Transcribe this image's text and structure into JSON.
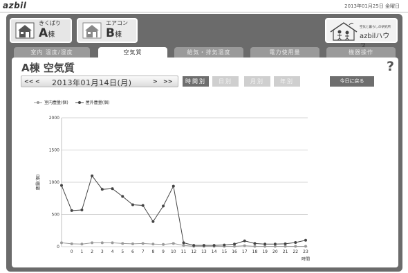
{
  "header": {
    "logo": "azbil",
    "datetime": "2013年01月25日 金曜日"
  },
  "buildings": [
    {
      "small": "きくばり",
      "big": "A",
      "suffix": "棟",
      "active": true
    },
    {
      "small": "エアコン",
      "big": "B",
      "suffix": "棟",
      "active": false
    }
  ],
  "brand": {
    "small": "空気と暮らしの研究所",
    "big": "azbilハウス"
  },
  "tabs": [
    "室内 温度/湿度",
    "空気質",
    "給気・排気温度",
    "電力使用量",
    "機器操作"
  ],
  "active_tab": 1,
  "panel": {
    "title": "A棟 空気質",
    "help": "?",
    "date": "2013年01月14日(月)",
    "nav_first": "<<",
    "nav_prev": "<",
    "nav_next": ">",
    "nav_last": ">>",
    "periods": [
      "時間別",
      "日別",
      "月別",
      "年別"
    ],
    "today": "今日に戻る"
  },
  "colors": {
    "indoor": "#9a9a9a",
    "outdoor": "#444444",
    "frame": "#6b6b6b"
  },
  "chart_data": {
    "type": "line",
    "xlabel": "時間",
    "ylabel": "塵量(個)",
    "ylim": [
      0,
      2000
    ],
    "yticks": [
      0,
      500,
      1000,
      1500,
      2000
    ],
    "grid": true,
    "legend_position": "top-left",
    "x": [
      "",
      "0",
      "1",
      "2",
      "3",
      "4",
      "5",
      "6",
      "7",
      "8",
      "9",
      "10",
      "11",
      "12",
      "13",
      "14",
      "15",
      "16",
      "17",
      "18",
      "19",
      "20",
      "21",
      "22",
      "23"
    ],
    "series": [
      {
        "name": "室内塵量(個)",
        "values": [
          60,
          45,
          40,
          60,
          60,
          60,
          50,
          45,
          50,
          40,
          35,
          50,
          20,
          5,
          5,
          5,
          5,
          5,
          15,
          5,
          5,
          5,
          5,
          5,
          5
        ]
      },
      {
        "name": "屋外塵量(個)",
        "values": [
          950,
          560,
          570,
          1100,
          890,
          900,
          780,
          650,
          640,
          390,
          630,
          940,
          60,
          20,
          20,
          20,
          25,
          40,
          90,
          50,
          40,
          40,
          45,
          65,
          100
        ]
      }
    ]
  }
}
